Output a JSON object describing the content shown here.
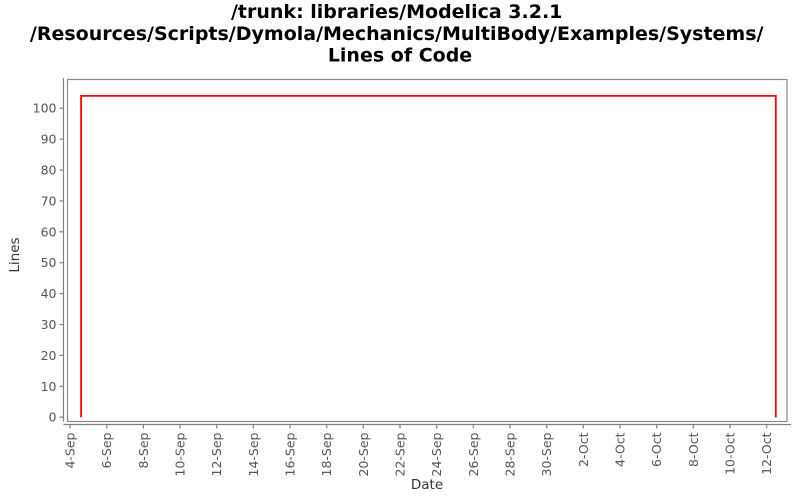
{
  "title": {
    "line1": "/trunk: libraries/Modelica 3.2.1",
    "line2": "/Resources/Scripts/Dymola/Mechanics/MultiBody/Examples/Systems/",
    "line3": "Lines of Code"
  },
  "colors": {
    "series_line": "#ff0000",
    "plot_border": "#888888",
    "axis_line": "#808080",
    "tick_text": "#555555",
    "axis_label_text": "#333333",
    "title_text": "#000000",
    "background": "#ffffff"
  },
  "chart_data": {
    "type": "line",
    "title": "/trunk: libraries/Modelica 3.2.1 /Resources/Scripts/Dymola/Mechanics/MultiBody/Examples/Systems/ Lines of Code",
    "xlabel": "Date",
    "ylabel": "Lines",
    "grid": false,
    "legend": false,
    "x_tick_labels": [
      "4-Sep",
      "6-Sep",
      "8-Sep",
      "10-Sep",
      "12-Sep",
      "14-Sep",
      "16-Sep",
      "18-Sep",
      "20-Sep",
      "22-Sep",
      "24-Sep",
      "26-Sep",
      "28-Sep",
      "30-Sep",
      "2-Oct",
      "4-Oct",
      "6-Oct",
      "8-Oct",
      "10-Oct",
      "12-Oct"
    ],
    "x_tick_days": [
      0,
      2,
      4,
      6,
      8,
      10,
      12,
      14,
      16,
      18,
      20,
      22,
      24,
      26,
      28,
      30,
      32,
      34,
      36,
      38
    ],
    "y_ticks": [
      0,
      10,
      20,
      30,
      40,
      50,
      60,
      70,
      80,
      90,
      100
    ],
    "x_range_days": [
      -0.14,
      39.11
    ],
    "ylim": [
      -1.4,
      109.3
    ],
    "series": [
      {
        "name": "Lines of Code",
        "color": "#ff0000",
        "points_day_value": [
          [
            0.6,
            0
          ],
          [
            0.6,
            104
          ],
          [
            38.5,
            104
          ],
          [
            38.5,
            0
          ]
        ],
        "description": "Constant at 104 lines from 5-Sep through 12-Oct, 0 outside that range"
      }
    ]
  }
}
